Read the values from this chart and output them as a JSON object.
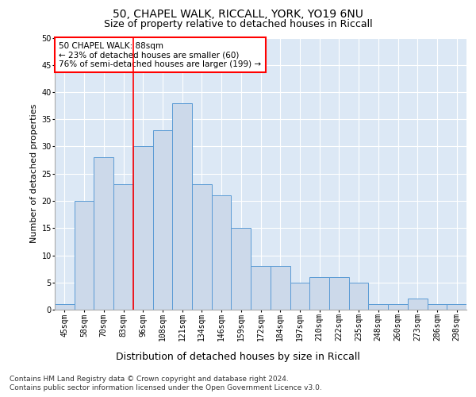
{
  "title1": "50, CHAPEL WALK, RICCALL, YORK, YO19 6NU",
  "title2": "Size of property relative to detached houses in Riccall",
  "xlabel": "Distribution of detached houses by size in Riccall",
  "ylabel": "Number of detached properties",
  "categories": [
    "45sqm",
    "58sqm",
    "70sqm",
    "83sqm",
    "96sqm",
    "108sqm",
    "121sqm",
    "134sqm",
    "146sqm",
    "159sqm",
    "172sqm",
    "184sqm",
    "197sqm",
    "210sqm",
    "222sqm",
    "235sqm",
    "248sqm",
    "260sqm",
    "273sqm",
    "286sqm",
    "298sqm"
  ],
  "values": [
    1,
    20,
    28,
    23,
    30,
    33,
    38,
    23,
    21,
    15,
    8,
    8,
    5,
    6,
    6,
    5,
    1,
    1,
    2,
    1,
    1
  ],
  "bar_color": "#ccd9ea",
  "bar_edge_color": "#5b9bd5",
  "vline_x_index": 3,
  "vline_color": "red",
  "ylim": [
    0,
    50
  ],
  "yticks": [
    0,
    5,
    10,
    15,
    20,
    25,
    30,
    35,
    40,
    45,
    50
  ],
  "annotation_text": "50 CHAPEL WALK: 88sqm\n← 23% of detached houses are smaller (60)\n76% of semi-detached houses are larger (199) →",
  "annotation_box_edgecolor": "red",
  "background_color": "#dce8f5",
  "footer_line1": "Contains HM Land Registry data © Crown copyright and database right 2024.",
  "footer_line2": "Contains public sector information licensed under the Open Government Licence v3.0.",
  "title1_fontsize": 10,
  "title2_fontsize": 9,
  "xlabel_fontsize": 9,
  "ylabel_fontsize": 8,
  "tick_fontsize": 7,
  "annotation_fontsize": 7.5,
  "footer_fontsize": 6.5
}
